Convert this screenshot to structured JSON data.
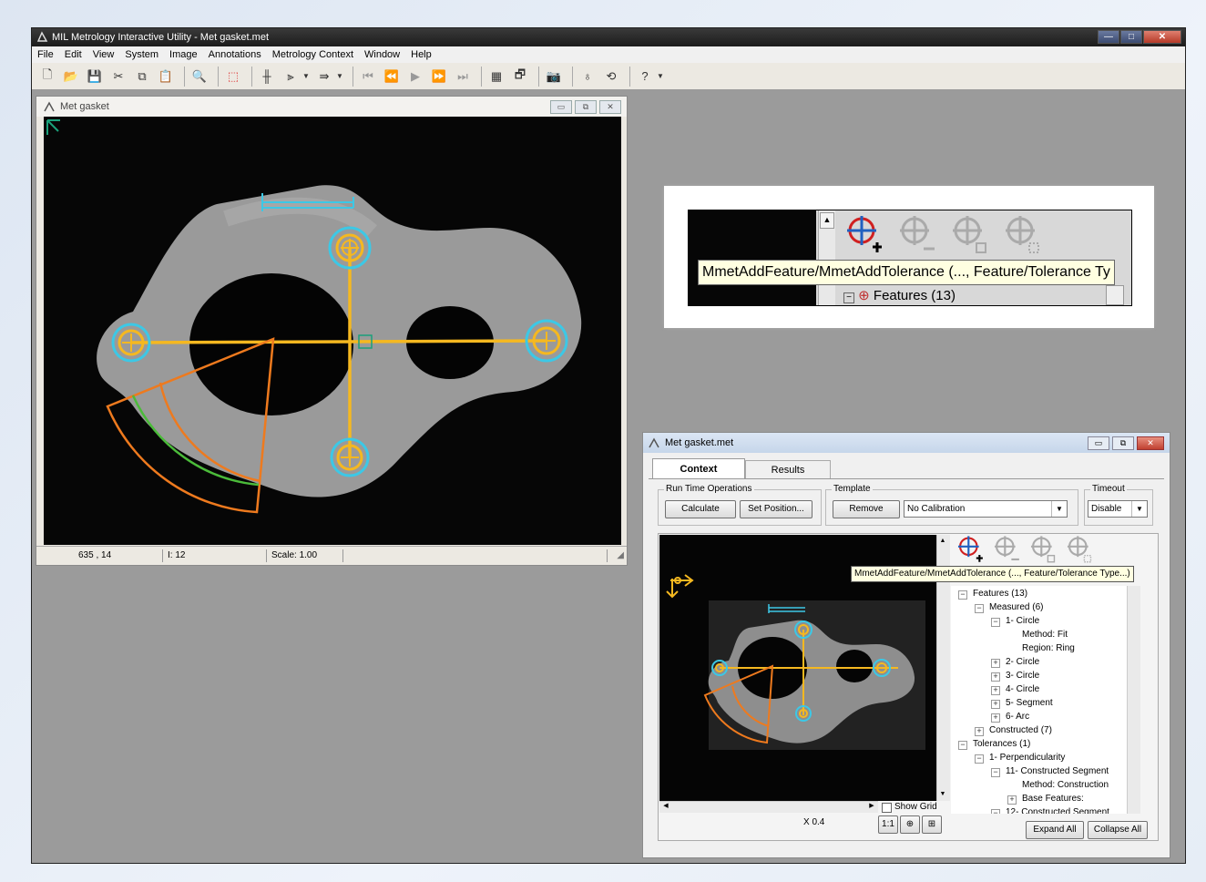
{
  "app": {
    "title": "MIL Metrology Interactive Utility - Met gasket.met",
    "menu": [
      "File",
      "Edit",
      "View",
      "System",
      "Image",
      "Annotations",
      "Metrology Context",
      "Window",
      "Help"
    ]
  },
  "image_window": {
    "title": "Met gasket",
    "status": {
      "coords": "635 , 14",
      "index": "I: 12",
      "scale": "Scale: 1.00"
    }
  },
  "callout": {
    "tooltip": "MmetAddFeature/MmetAddTolerance (..., Feature/Tolerance Ty",
    "tree_label": "Features (13)"
  },
  "context_window": {
    "title": "Met gasket.met",
    "tabs": [
      "Context",
      "Results"
    ],
    "run_time_label": "Run Time Operations",
    "calculate": "Calculate",
    "set_position": "Set Position...",
    "template_label": "Template",
    "remove": "Remove",
    "calibration": "No Calibration",
    "timeout_label": "Timeout",
    "timeout_value": "Disable",
    "tooltip": "MmetAddFeature/MmetAddTolerance (..., Feature/Tolerance Type...)",
    "show_grid": "Show Grid",
    "zoom": "X 0.4",
    "one_to_one": "1:1",
    "expand_all": "Expand All",
    "collapse_all": "Collapse All",
    "tree": [
      {
        "label": "Features (13)",
        "indent": 0,
        "box": "−"
      },
      {
        "label": "Measured (6)",
        "indent": 1,
        "box": "−"
      },
      {
        "label": "1- Circle",
        "indent": 2,
        "box": "−"
      },
      {
        "label": "Method: Fit",
        "indent": 3,
        "box": ""
      },
      {
        "label": "Region: Ring",
        "indent": 3,
        "box": ""
      },
      {
        "label": "2- Circle",
        "indent": 2,
        "box": "+"
      },
      {
        "label": "3- Circle",
        "indent": 2,
        "box": "+"
      },
      {
        "label": "4- Circle",
        "indent": 2,
        "box": "+"
      },
      {
        "label": "5- Segment",
        "indent": 2,
        "box": "+"
      },
      {
        "label": "6- Arc",
        "indent": 2,
        "box": "+"
      },
      {
        "label": "Constructed (7)",
        "indent": 1,
        "box": "+"
      },
      {
        "label": "Tolerances (1)",
        "indent": 0,
        "box": "−"
      },
      {
        "label": "1- Perpendicularity",
        "indent": 1,
        "box": "−"
      },
      {
        "label": "11- Constructed Segment",
        "indent": 2,
        "box": "−"
      },
      {
        "label": "Method: Construction",
        "indent": 3,
        "box": ""
      },
      {
        "label": "Base Features:",
        "indent": 3,
        "box": "+"
      },
      {
        "label": "12- Constructed Segment",
        "indent": 2,
        "box": "−"
      }
    ]
  },
  "colors": {
    "overlay": "#f5b820",
    "circle": "#3cc8e6",
    "arc": "#ee7a1e",
    "fit": "#4bbb3a",
    "template": "#1aa07a"
  }
}
